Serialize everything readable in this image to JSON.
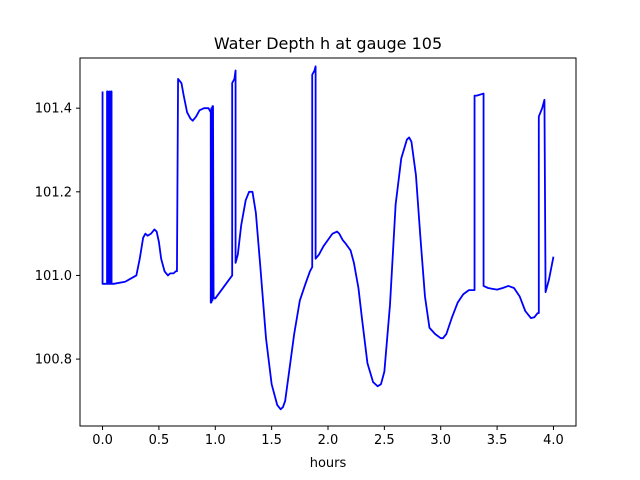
{
  "chart_data": {
    "type": "line",
    "title": "Water Depth h at gauge 105",
    "xlabel": "hours",
    "ylabel": "",
    "xlim": [
      -0.2,
      4.2
    ],
    "ylim": [
      100.64,
      101.52
    ],
    "x_ticks": [
      0.0,
      0.5,
      1.0,
      1.5,
      2.0,
      2.5,
      3.0,
      3.5,
      4.0
    ],
    "x_tick_labels": [
      "0.0",
      "0.5",
      "1.0",
      "1.5",
      "2.0",
      "2.5",
      "3.0",
      "3.5",
      "4.0"
    ],
    "y_ticks": [
      100.8,
      101.0,
      101.2,
      101.4
    ],
    "y_tick_labels": [
      "100.8",
      "101.0",
      "101.2",
      "101.4"
    ],
    "grid": false,
    "series": [
      {
        "color": "#0000ff",
        "x": [
          0.0,
          0.0,
          0.005,
          0.01,
          0.02,
          0.03,
          0.04,
          0.04,
          0.045,
          0.05,
          0.055,
          0.06,
          0.06,
          0.065,
          0.07,
          0.075,
          0.08,
          0.08,
          0.085,
          0.09,
          0.1,
          0.2,
          0.3,
          0.33,
          0.36,
          0.38,
          0.4,
          0.43,
          0.46,
          0.48,
          0.5,
          0.52,
          0.55,
          0.58,
          0.6,
          0.63,
          0.65,
          0.66,
          0.67,
          0.67,
          0.7,
          0.72,
          0.75,
          0.78,
          0.8,
          0.83,
          0.86,
          0.9,
          0.94,
          0.96,
          0.96,
          0.965,
          0.965,
          0.97,
          0.97,
          0.975,
          0.975,
          0.98,
          0.985,
          0.99,
          0.995,
          1.0,
          1.15,
          1.15,
          1.17,
          1.18,
          1.18,
          1.2,
          1.23,
          1.27,
          1.3,
          1.33,
          1.36,
          1.4,
          1.45,
          1.5,
          1.55,
          1.58,
          1.6,
          1.62,
          1.65,
          1.7,
          1.75,
          1.8,
          1.84,
          1.86,
          1.86,
          1.88,
          1.89,
          1.89,
          1.92,
          1.96,
          2.0,
          2.04,
          2.08,
          2.1,
          2.13,
          2.16,
          2.2,
          2.23,
          2.27,
          2.3,
          2.35,
          2.4,
          2.44,
          2.47,
          2.5,
          2.55,
          2.6,
          2.65,
          2.7,
          2.72,
          2.74,
          2.78,
          2.82,
          2.86,
          2.9,
          2.95,
          3.0,
          3.02,
          3.05,
          3.1,
          3.15,
          3.2,
          3.25,
          3.3,
          3.3,
          3.32,
          3.38,
          3.38,
          3.42,
          3.46,
          3.5,
          3.55,
          3.6,
          3.65,
          3.7,
          3.75,
          3.8,
          3.83,
          3.86,
          3.87,
          3.87,
          3.9,
          3.92,
          3.93,
          3.96,
          4.0
        ],
        "y": [
          101.44,
          100.98,
          100.98,
          100.98,
          100.98,
          100.98,
          100.98,
          101.44,
          101.44,
          100.98,
          100.98,
          101.44,
          101.44,
          100.98,
          100.98,
          101.44,
          101.44,
          100.98,
          100.98,
          100.98,
          100.98,
          100.985,
          101.0,
          101.04,
          101.09,
          101.1,
          101.095,
          101.1,
          101.11,
          101.105,
          101.08,
          101.04,
          101.01,
          101.0,
          101.005,
          101.005,
          101.01,
          101.01,
          101.47,
          101.47,
          101.46,
          101.43,
          101.39,
          101.375,
          101.37,
          101.38,
          101.395,
          101.4,
          101.4,
          101.39,
          100.935,
          100.935,
          101.4,
          101.4,
          100.94,
          100.94,
          101.405,
          101.405,
          100.95,
          100.945,
          100.945,
          100.945,
          101.0,
          101.46,
          101.47,
          101.49,
          101.03,
          101.05,
          101.12,
          101.18,
          101.2,
          101.2,
          101.15,
          101.02,
          100.85,
          100.74,
          100.69,
          100.68,
          100.685,
          100.7,
          100.76,
          100.86,
          100.94,
          100.98,
          101.01,
          101.02,
          101.48,
          101.49,
          101.5,
          101.04,
          101.05,
          101.07,
          101.085,
          101.1,
          101.105,
          101.1,
          101.085,
          101.075,
          101.06,
          101.03,
          100.97,
          100.9,
          100.79,
          100.745,
          100.735,
          100.74,
          100.77,
          100.93,
          101.17,
          101.28,
          101.325,
          101.33,
          101.32,
          101.24,
          101.09,
          100.95,
          100.875,
          100.86,
          100.85,
          100.85,
          100.86,
          100.9,
          100.935,
          100.955,
          100.965,
          100.965,
          101.43,
          101.43,
          101.435,
          100.975,
          100.97,
          100.968,
          100.966,
          100.97,
          100.975,
          100.97,
          100.95,
          100.915,
          100.898,
          100.9,
          100.91,
          100.91,
          101.38,
          101.4,
          101.42,
          100.96,
          100.99,
          101.045
        ]
      }
    ]
  }
}
